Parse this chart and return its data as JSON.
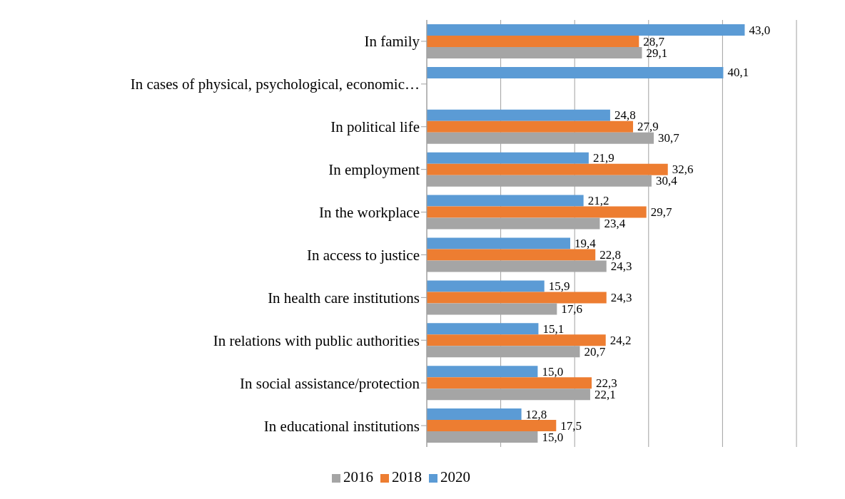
{
  "chart_data": {
    "type": "bar",
    "orientation": "horizontal",
    "categories": [
      "In family",
      "In cases of physical, psychological, economic…",
      "In political life",
      "In employment",
      "In the workplace",
      "In access to justice",
      "In health care institutions",
      "In relations with public authorities",
      "In social assistance/protection",
      "In educational institutions"
    ],
    "series": [
      {
        "name": "2020",
        "color": "#5b9bd5",
        "values": [
          43.0,
          40.1,
          24.8,
          21.9,
          21.2,
          19.4,
          15.9,
          15.1,
          15.0,
          12.8
        ],
        "value_labels": [
          "43,0",
          "40,1",
          "24,8",
          "21,9",
          "21,2",
          "19,4",
          "15,9",
          "15,1",
          "15,0",
          "12,8"
        ]
      },
      {
        "name": "2018",
        "color": "#ed7d31",
        "values": [
          28.7,
          null,
          27.9,
          32.6,
          29.7,
          22.8,
          24.3,
          24.2,
          22.3,
          17.5
        ],
        "value_labels": [
          "28,7",
          null,
          "27,9",
          "32,6",
          "29,7",
          "22,8",
          "24,3",
          "24,2",
          "22,3",
          "17,5"
        ]
      },
      {
        "name": "2016",
        "color": "#a5a5a5",
        "values": [
          29.1,
          null,
          30.7,
          30.4,
          23.4,
          24.3,
          17.6,
          20.7,
          22.1,
          15.0
        ],
        "value_labels": [
          "29,1",
          null,
          "30,7",
          "30,4",
          "23,4",
          "24,3",
          "17,6",
          "20,7",
          "22,1",
          "15,0"
        ]
      }
    ],
    "xlim": [
      0,
      50
    ],
    "xticks": [
      {
        "value": 0,
        "label": null
      },
      {
        "value": 10,
        "label": null
      },
      {
        "value": 20,
        "label": null
      },
      {
        "value": 30,
        "label": null
      },
      {
        "value": 40,
        "label": null
      },
      {
        "value": 50,
        "label": null
      }
    ],
    "tick_labels": "y",
    "grid": "x",
    "legend": "bottom"
  }
}
